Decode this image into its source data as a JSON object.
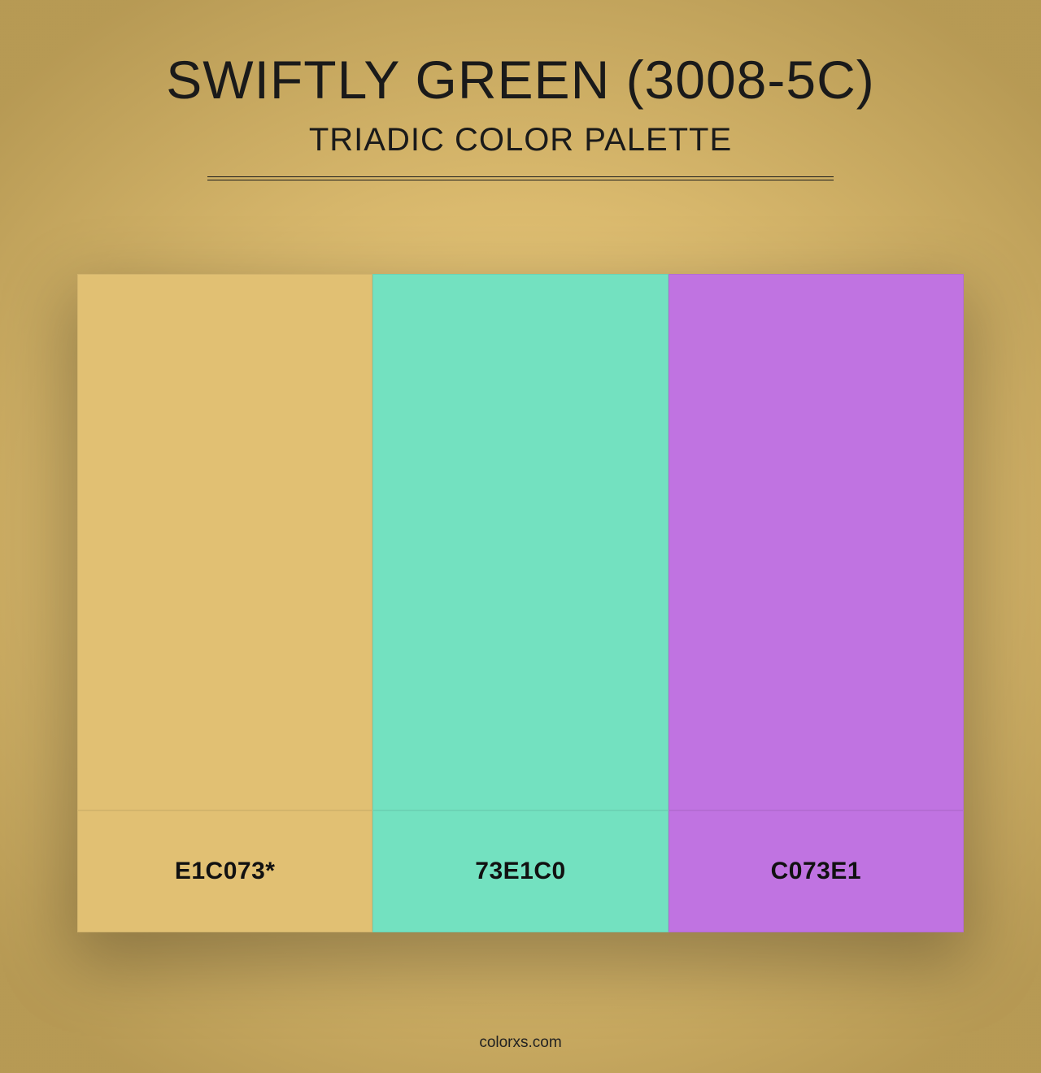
{
  "page": {
    "background_color": "#e1c073",
    "vignette_inner": "rgba(0,0,0,0)",
    "vignette_outer": "rgba(101,79,24,0.34)",
    "title": "SWIFTLY GREEN (3008-5C)",
    "subtitle": "TRIADIC COLOR PALETTE",
    "title_color": "#1a1a1a",
    "title_fontsize": 66,
    "subtitle_fontsize": 40,
    "divider_width": 770,
    "footer": "colorxs.com"
  },
  "palette": {
    "type": "infographic",
    "layout": "row",
    "swatch_top_height": 660,
    "swatch_bot_height": 150,
    "container_width": 1090,
    "border_color": "rgba(0,0,0,0.06)",
    "label_fontsize": 30,
    "label_fontweight": 700,
    "label_color": "#111111",
    "shadow": "0 30px 80px 10px rgba(0,0,0,0.28)",
    "swatches": [
      {
        "hex": "#e1c073",
        "label": "E1C073*"
      },
      {
        "hex": "#73e1c0",
        "label": "73E1C0"
      },
      {
        "hex": "#c073e1",
        "label": "C073E1"
      }
    ]
  }
}
